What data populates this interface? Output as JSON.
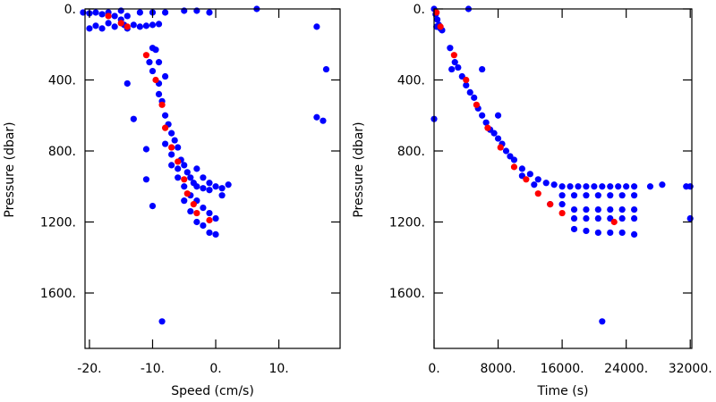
{
  "chart_data": [
    {
      "type": "scatter",
      "xlabel": "Speed (cm/s)",
      "ylabel": "Pressure (dbar)",
      "xlim": [
        -20.7,
        19.7
      ],
      "ylim": [
        1912,
        0
      ],
      "xticks": [
        {
          "value": -20,
          "label": "-20."
        },
        {
          "value": -10,
          "label": "-10."
        },
        {
          "value": 0,
          "label": "0."
        },
        {
          "value": 10,
          "label": "10."
        }
      ],
      "yticks": [
        {
          "value": 0,
          "label": "0."
        },
        {
          "value": 400,
          "label": "400."
        },
        {
          "value": 800,
          "label": "800."
        },
        {
          "value": 1200,
          "label": "1200."
        },
        {
          "value": 1600,
          "label": "1600."
        }
      ],
      "series": [
        {
          "color": "#0000ff",
          "x": [
            -21,
            -20,
            -19,
            -18,
            -17,
            -16,
            -15,
            -14.5,
            -14,
            -16,
            -18,
            -20,
            -19,
            -17,
            -13,
            -12,
            -11,
            -10,
            -9,
            -12,
            -10,
            -8,
            -5,
            -3,
            -1,
            -14,
            -15,
            -10,
            -9.5,
            -10.5,
            -10,
            -9,
            -9,
            -8.5,
            -8,
            -7.5,
            -7,
            -6.5,
            -6,
            -7,
            -5.5,
            -5,
            -4.5,
            -6,
            -4,
            -3.5,
            -3,
            -2,
            -1,
            0,
            1,
            2,
            -5,
            -4,
            -3,
            -2,
            -1,
            0,
            -2,
            -1,
            0,
            -3,
            -4,
            -5,
            -6,
            -7,
            -8,
            -3,
            -2,
            -1,
            1,
            -8,
            -9,
            -14,
            -13,
            -11,
            -11,
            -10,
            -8.5,
            6.5,
            16,
            17.5,
            16,
            17
          ],
          "values": [
            20,
            25,
            20,
            30,
            20,
            40,
            60,
            90,
            110,
            100,
            110,
            110,
            95,
            80,
            90,
            100,
            95,
            90,
            85,
            20,
            20,
            20,
            10,
            10,
            20,
            40,
            10,
            220,
            230,
            300,
            350,
            420,
            480,
            520,
            600,
            650,
            700,
            740,
            780,
            820,
            850,
            880,
            920,
            900,
            950,
            980,
            1000,
            1010,
            1020,
            1000,
            1010,
            990,
            1000,
            1050,
            1080,
            1120,
            1150,
            1180,
            1220,
            1260,
            1270,
            1200,
            1140,
            1080,
            950,
            880,
            760,
            900,
            950,
            980,
            1050,
            380,
            300,
            420,
            620,
            790,
            960,
            1110,
            1760,
            0,
            100,
            340,
            610,
            630
          ]
        },
        {
          "color": "#ff0000",
          "x": [
            -17,
            -15,
            -14,
            -11,
            -9.5,
            -8.5,
            -8,
            -7,
            -6,
            -5,
            -4.5,
            -3.5,
            -3,
            -1
          ],
          "values": [
            40,
            80,
            100,
            260,
            400,
            540,
            670,
            780,
            860,
            960,
            1040,
            1100,
            1150,
            1190
          ]
        }
      ]
    },
    {
      "type": "scatter",
      "xlabel": "Time (s)",
      "ylabel": "Pressure (dbar)",
      "xlim": [
        0,
        32200
      ],
      "ylim": [
        1912,
        0
      ],
      "xticks": [
        {
          "value": 0,
          "label": "0."
        },
        {
          "value": 8000,
          "label": "8000."
        },
        {
          "value": 16000,
          "label": "16000."
        },
        {
          "value": 24000,
          "label": "24000."
        },
        {
          "value": 32000,
          "label": "32000."
        }
      ],
      "yticks": [
        {
          "value": 0,
          "label": "0."
        },
        {
          "value": 400,
          "label": "400."
        },
        {
          "value": 800,
          "label": "800."
        },
        {
          "value": 1200,
          "label": "1200."
        },
        {
          "value": 1600,
          "label": "1600."
        }
      ],
      "series": [
        {
          "color": "#0000ff",
          "x": [
            0,
            200,
            400,
            600,
            800,
            1000,
            300,
            4300,
            0,
            2000,
            2200,
            2600,
            3000,
            3500,
            4000,
            4500,
            5000,
            5500,
            6000,
            6000,
            6500,
            7000,
            7500,
            8000,
            8000,
            8500,
            9000,
            9500,
            10000,
            11000,
            12000,
            13000,
            14000,
            15000,
            16000,
            17000,
            18000,
            19000,
            20000,
            21000,
            22000,
            23000,
            24000,
            25000,
            27000,
            28500,
            31500,
            32000,
            32000,
            16000,
            17500,
            19000,
            20500,
            22000,
            23500,
            25000,
            14500,
            16000,
            17500,
            19000,
            20500,
            22000,
            23500,
            25000,
            17500,
            19000,
            20500,
            22000,
            23500,
            25000,
            17500,
            19000,
            20500,
            22000,
            23500,
            25000,
            21000,
            11000,
            12500
          ],
          "values": [
            0,
            30,
            60,
            90,
            110,
            120,
            100,
            0,
            620,
            220,
            340,
            300,
            330,
            380,
            430,
            470,
            500,
            560,
            340,
            600,
            640,
            680,
            700,
            600,
            730,
            760,
            800,
            830,
            850,
            900,
            930,
            960,
            980,
            990,
            1000,
            1000,
            1000,
            1000,
            1000,
            1000,
            1000,
            1000,
            1000,
            1000,
            1000,
            990,
            1000,
            1000,
            1180,
            1050,
            1050,
            1050,
            1050,
            1050,
            1050,
            1050,
            1100,
            1100,
            1130,
            1130,
            1130,
            1130,
            1130,
            1130,
            1180,
            1180,
            1180,
            1180,
            1180,
            1180,
            1240,
            1250,
            1260,
            1260,
            1260,
            1270,
            1760,
            940,
            990
          ]
        },
        {
          "color": "#ff0000",
          "x": [
            300,
            800,
            2500,
            4000,
            5300,
            6700,
            8300,
            10000,
            11500,
            13000,
            14500,
            16000,
            22500
          ],
          "values": [
            20,
            100,
            260,
            400,
            540,
            670,
            780,
            890,
            960,
            1040,
            1100,
            1150,
            1200
          ]
        }
      ]
    }
  ]
}
